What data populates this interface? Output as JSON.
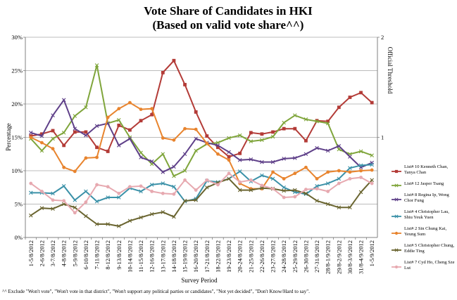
{
  "title": "Vote Share of Candidates in HKI",
  "subtitle": "(Based on valid vote share^^)",
  "footnote": "^^ Exclude \"Won't vote\", \"Won't vote in that district\", \"Won't support any political parties or candidates\", \"Not yet decided\", \"Don't Know/Hard to say\".",
  "colors": {
    "grid": "#a6a6a6",
    "axis": "#808080"
  },
  "chart_data": {
    "type": "line",
    "title": "Vote Share of Candidates in HKI",
    "subtitle": "(Based on valid vote share^^)",
    "xlabel": "Survey Period",
    "ylabel": "Percentage",
    "y2label": "Official Threshold",
    "ylim": [
      0,
      30
    ],
    "y2lim": [
      0,
      2
    ],
    "grid": true,
    "legend_position": "right",
    "y_ticks": [
      "0%",
      "5%",
      "10%",
      "15%",
      "20%",
      "25%",
      "30%"
    ],
    "y2_ticks": [
      "1",
      "2"
    ],
    "categories": [
      "1-5/8/2012",
      "2-6/8/2012",
      "3-7/8/2012",
      "4-8/8/2012",
      "5-9/8/2012",
      "6-10/8/2012",
      "7-11/8/2012",
      "8-12/8/2012",
      "9-13/8/2012",
      "10-14/8/2012",
      "11-15/8/2012",
      "12-16/8/2012",
      "13-17/8/2012",
      "14-18/8/2012",
      "15-19/8/2012",
      "16-20/8/2012",
      "17-21/8/2012",
      "18-22/8/2012",
      "19-23/8/2012",
      "20-24/8/2012",
      "21-25/8/2012",
      "22-26/8/2012",
      "23-27/8/2012",
      "24-28/8/2012",
      "25-29/8/2012",
      "26-30/8/2012",
      "27-31/8/2012",
      "28/8-1/9/2012",
      "29/8-2/9/2012",
      "30/8-3/9/2012",
      "31/8-4/9/2012",
      "1-5/9/2012"
    ],
    "series": [
      {
        "name": "List# 10 Kenneth Chan, Tanya Chan",
        "color": "#b33b37",
        "marker": "square",
        "values": [
          15.2,
          15.5,
          16.0,
          13.8,
          15.8,
          15.8,
          13.5,
          12.9,
          16.8,
          16.1,
          17.5,
          18.4,
          24.7,
          26.5,
          22.9,
          18.8,
          15.2,
          13.5,
          12.1,
          12.6,
          15.7,
          15.5,
          15.8,
          16.3,
          16.3,
          14.5,
          17.5,
          17.4,
          19.5,
          21.0,
          21.7,
          20.2
        ]
      },
      {
        "name": "List# 12 Jasper Tsang",
        "color": "#7fa53b",
        "marker": "x",
        "values": [
          14.8,
          13.0,
          14.8,
          15.7,
          18.2,
          19.5,
          25.8,
          17.1,
          17.6,
          15.0,
          12.7,
          11.0,
          12.5,
          9.2,
          10.0,
          13.0,
          14.0,
          14.2,
          14.9,
          15.3,
          14.4,
          14.6,
          15.1,
          17.2,
          18.3,
          17.7,
          17.4,
          17.1,
          13.2,
          12.5,
          12.9,
          12.3
        ]
      },
      {
        "name": "List# 8 Regina Ip, Wong Chor Fung",
        "color": "#5f4089",
        "marker": "x",
        "values": [
          15.7,
          15.2,
          18.3,
          20.6,
          16.3,
          15.3,
          16.7,
          17.1,
          13.8,
          14.8,
          12.0,
          11.4,
          9.8,
          10.6,
          12.5,
          14.8,
          14.2,
          13.8,
          12.8,
          11.6,
          11.7,
          11.3,
          11.3,
          11.8,
          11.9,
          12.5,
          13.4,
          13.0,
          13.7,
          12.1,
          10.5,
          11.2
        ]
      },
      {
        "name": "List# 4 Christopher Lau, Shiu Yeuk Yuen",
        "color": "#3b91a8",
        "marker": "x",
        "values": [
          6.7,
          6.7,
          6.6,
          7.7,
          5.6,
          6.9,
          5.4,
          6.0,
          6.0,
          7.4,
          6.9,
          7.9,
          8.1,
          7.6,
          5.4,
          5.8,
          8.5,
          8.3,
          8.8,
          9.9,
          8.4,
          9.3,
          8.8,
          7.5,
          6.8,
          6.5,
          7.7,
          8.1,
          8.8,
          10.4,
          10.8,
          10.9
        ]
      },
      {
        "name": "List# 2 Sin Chung Kai, Yeung Sum",
        "color": "#e8842e",
        "marker": "circle",
        "values": [
          15.0,
          14.2,
          13.3,
          10.5,
          9.9,
          11.9,
          12.0,
          18.0,
          19.3,
          20.2,
          19.2,
          19.3,
          14.9,
          14.6,
          16.3,
          16.2,
          14.1,
          12.5,
          11.6,
          8.1,
          7.3,
          7.3,
          9.8,
          8.8,
          9.6,
          10.5,
          8.8,
          9.8,
          10.0,
          9.8,
          10.0,
          10.1
        ]
      },
      {
        "name": "List# 5 Christopher Chung, Eddie Ting",
        "color": "#6a6530",
        "marker": "x",
        "values": [
          3.3,
          4.4,
          4.3,
          5.0,
          4.5,
          3.2,
          2.0,
          2.0,
          1.7,
          2.5,
          3.0,
          3.5,
          3.8,
          3.1,
          5.5,
          5.6,
          7.5,
          8.2,
          8.8,
          7.1,
          7.1,
          7.4,
          7.3,
          7.0,
          7.1,
          6.6,
          5.5,
          5.0,
          4.5,
          4.5,
          6.8,
          8.6
        ]
      },
      {
        "name": "List# 7 Cyd Ho, Cheng Sze Lut",
        "color": "#e7a9b0",
        "marker": "circle",
        "values": [
          8.1,
          6.9,
          5.6,
          5.5,
          3.7,
          5.3,
          7.9,
          7.6,
          6.6,
          7.6,
          7.7,
          6.9,
          6.6,
          6.5,
          8.6,
          7.1,
          8.6,
          7.9,
          9.6,
          8.3,
          8.6,
          7.8,
          7.3,
          6.0,
          6.1,
          7.2,
          7.3,
          6.9,
          8.1,
          8.8,
          9.0,
          8.1
        ]
      }
    ]
  }
}
